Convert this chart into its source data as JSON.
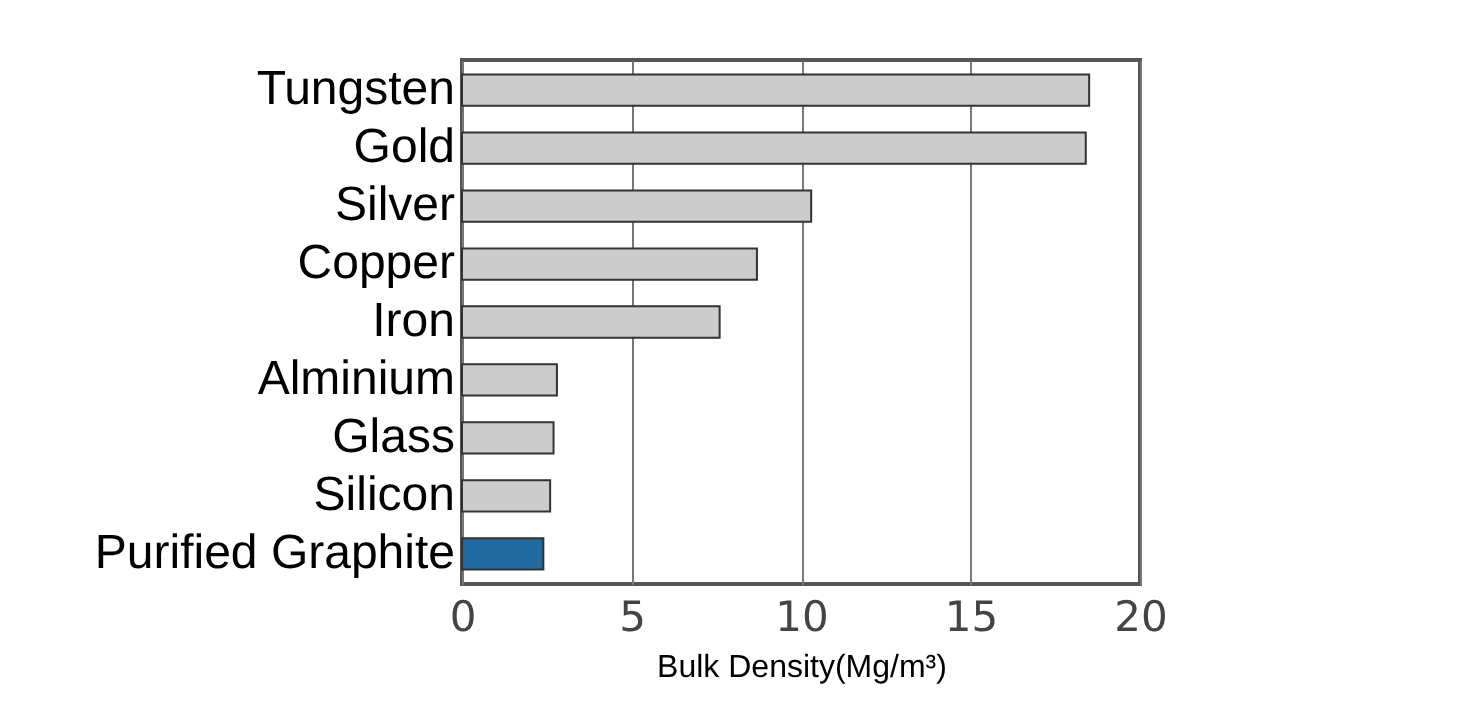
{
  "chart_data": {
    "type": "bar",
    "orientation": "horizontal",
    "xlabel": "Bulk Density(Mg/m³)",
    "categories": [
      "Tungsten",
      "Gold",
      "Silver",
      "Copper",
      "Iron",
      "Alminium",
      "Glass",
      "Silicon",
      "Purified Graphite"
    ],
    "values": [
      18.5,
      18.4,
      10.3,
      8.7,
      7.6,
      2.8,
      2.7,
      2.6,
      2.4
    ],
    "colors": [
      "#cccccc",
      "#cccccc",
      "#cccccc",
      "#cccccc",
      "#cccccc",
      "#cccccc",
      "#cccccc",
      "#cccccc",
      "#1f6aa0"
    ],
    "xlim": [
      0,
      20
    ],
    "xticks": [
      0,
      5,
      10,
      15,
      20
    ],
    "grid": "x"
  }
}
